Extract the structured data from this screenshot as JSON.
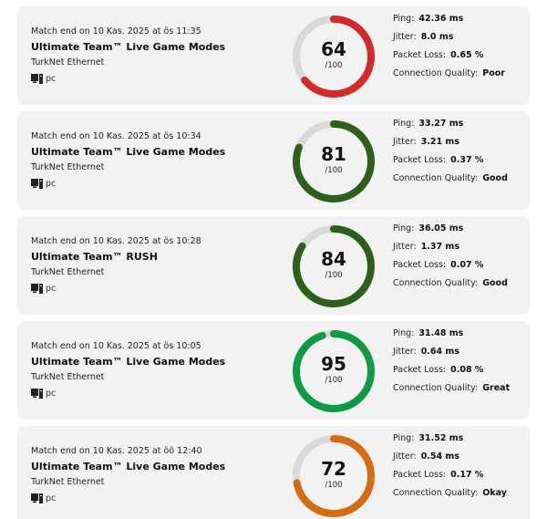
{
  "accent_colors": {
    "poor": "#d42a2a",
    "good": "#2f5f1c",
    "great": "#0f9a43",
    "okay": "#d56b12",
    "track": "#d9d9d9"
  },
  "matches": [
    {
      "date": "Match end on 10 Kas. 2025 at ös 11:35",
      "mode": "Ultimate Team™ Live Game Modes",
      "network": "TurkNet Ethernet",
      "platform_icon": "pc-icon",
      "platform": "pc",
      "score": "64",
      "score_value": 64,
      "score_max": "/100",
      "color": "#d42a2a",
      "ping_label": "Ping:",
      "ping": "42.36 ms",
      "jitter_label": "Jitter:",
      "jitter": "8.0 ms",
      "loss_label": "Packet Loss:",
      "loss": "0.65 %",
      "quality_label": "Connection Quality:",
      "quality": "Poor"
    },
    {
      "date": "Match end on 10 Kas. 2025 at ös 10:34",
      "mode": "Ultimate Team™ Live Game Modes",
      "network": "TurkNet Ethernet",
      "platform_icon": "pc-icon",
      "platform": "pc",
      "score": "81",
      "score_value": 81,
      "score_max": "/100",
      "color": "#2f5f1c",
      "ping_label": "Ping:",
      "ping": "33.27 ms",
      "jitter_label": "Jitter:",
      "jitter": "3.21 ms",
      "loss_label": "Packet Loss:",
      "loss": "0.37 %",
      "quality_label": "Connection Quality:",
      "quality": "Good"
    },
    {
      "date": "Match end on 10 Kas. 2025 at ös 10:28",
      "mode": "Ultimate Team™ RUSH",
      "network": "TurkNet Ethernet",
      "platform_icon": "pc-icon",
      "platform": "pc",
      "score": "84",
      "score_value": 84,
      "score_max": "/100",
      "color": "#2f5f1c",
      "ping_label": "Ping:",
      "ping": "36.05 ms",
      "jitter_label": "Jitter:",
      "jitter": "1.37 ms",
      "loss_label": "Packet Loss:",
      "loss": "0.07 %",
      "quality_label": "Connection Quality:",
      "quality": "Good"
    },
    {
      "date": "Match end on 10 Kas. 2025 at ös 10:05",
      "mode": "Ultimate Team™ Live Game Modes",
      "network": "TurkNet Ethernet",
      "platform_icon": "pc-icon",
      "platform": "pc",
      "score": "95",
      "score_value": 95,
      "score_max": "/100",
      "color": "#0f9a43",
      "ping_label": "Ping:",
      "ping": "31.48 ms",
      "jitter_label": "Jitter:",
      "jitter": "0.64 ms",
      "loss_label": "Packet Loss:",
      "loss": "0.08 %",
      "quality_label": "Connection Quality:",
      "quality": "Great"
    },
    {
      "date": "Match end on 10 Kas. 2025 at öö 12:40",
      "mode": "Ultimate Team™ Live Game Modes",
      "network": "TurkNet Ethernet",
      "platform_icon": "pc-icon",
      "platform": "pc",
      "score": "72",
      "score_value": 72,
      "score_max": "/100",
      "color": "#d56b12",
      "ping_label": "Ping:",
      "ping": "31.52 ms",
      "jitter_label": "Jitter:",
      "jitter": "0.54 ms",
      "loss_label": "Packet Loss:",
      "loss": "0.17 %",
      "quality_label": "Connection Quality:",
      "quality": "Okay"
    }
  ]
}
